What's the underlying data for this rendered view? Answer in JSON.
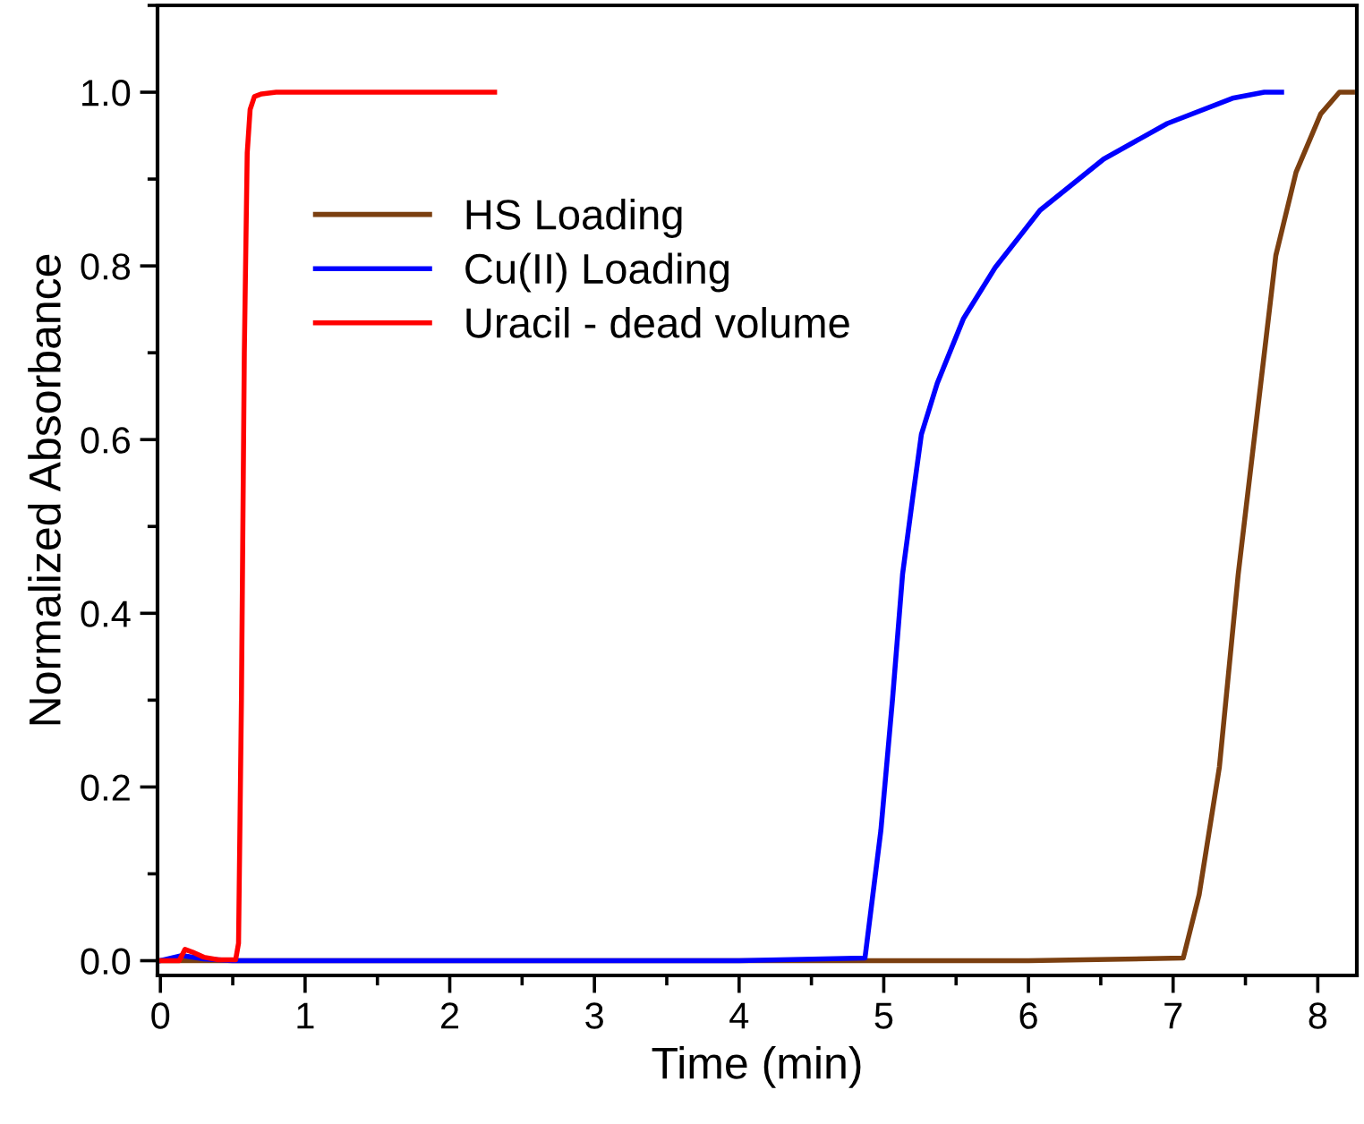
{
  "chart_data": {
    "type": "line",
    "xlabel": "Time (min)",
    "ylabel": "Normalized Absorbance",
    "xlim": [
      -0.02,
      8.27
    ],
    "ylim": [
      -0.017,
      1.1
    ],
    "xticks": [
      0,
      1,
      2,
      3,
      4,
      5,
      6,
      7,
      8
    ],
    "yticks": [
      {
        "value": 0,
        "label": "0.0"
      },
      {
        "value": 0.2,
        "label": "0.2"
      },
      {
        "value": 0.4,
        "label": "0.4"
      },
      {
        "value": 0.6,
        "label": "0.6"
      },
      {
        "value": 0.8,
        "label": "0.8"
      },
      {
        "value": 1.0,
        "label": "1.0"
      }
    ],
    "grid": false,
    "legend": "top left",
    "marker": "none",
    "line_style": "solid",
    "series": [
      {
        "name": "HS Loading",
        "color": "#7b3f10",
        "x": [
          0,
          1,
          2,
          3,
          4,
          5,
          6,
          7.07,
          7.18,
          7.32,
          7.45,
          7.58,
          7.71,
          7.85,
          8.02,
          8.15,
          8.24
        ],
        "values": [
          0,
          0,
          0,
          0,
          0,
          0,
          0,
          0.003,
          0.076,
          0.223,
          0.445,
          0.628,
          0.812,
          0.908,
          0.975,
          1.0,
          1.0
        ]
      },
      {
        "name": "Cu(II) Loading",
        "color": "#0000ff",
        "x": [
          0,
          0.15,
          0.3,
          0.5,
          1,
          2,
          3,
          4,
          4.87,
          4.98,
          5.06,
          5.13,
          5.2,
          5.26,
          5.37,
          5.55,
          5.77,
          6.08,
          6.52,
          6.96,
          7.41,
          7.63,
          7.75
        ],
        "values": [
          0,
          0.006,
          0.002,
          0,
          0,
          0,
          0,
          0,
          0.003,
          0.15,
          0.3,
          0.445,
          0.533,
          0.606,
          0.665,
          0.739,
          0.798,
          0.864,
          0.923,
          0.964,
          0.993,
          1.0,
          1.0
        ]
      },
      {
        "name": "Uracil - dead volume",
        "color": "#ff0000",
        "x": [
          0,
          0.13,
          0.17,
          0.22,
          0.3,
          0.4,
          0.52,
          0.54,
          0.56,
          0.58,
          0.6,
          0.62,
          0.65,
          0.7,
          0.8,
          1.0,
          2.31
        ],
        "values": [
          0,
          0,
          0.013,
          0.01,
          0.004,
          0.001,
          0.001,
          0.02,
          0.3,
          0.7,
          0.93,
          0.98,
          0.995,
          0.998,
          1.0,
          1.0,
          1.0
        ]
      }
    ]
  }
}
